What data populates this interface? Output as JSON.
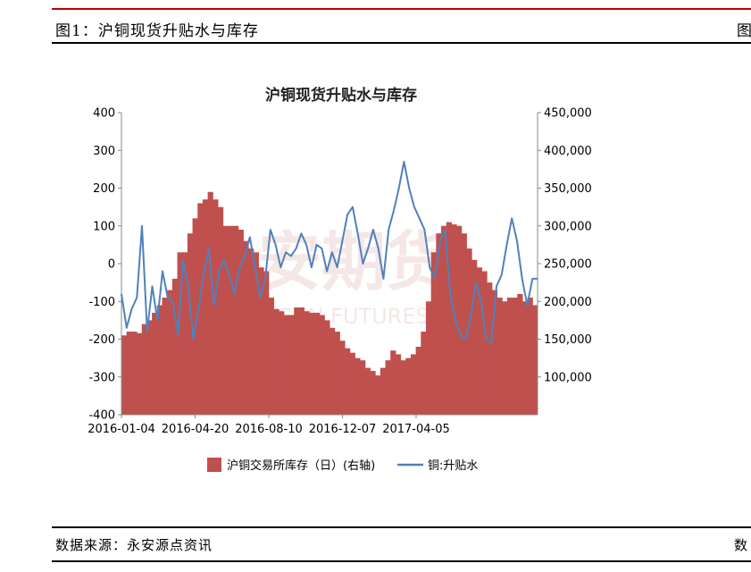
{
  "header": {
    "figure_title": "图1：沪铜现货升贴水与库存",
    "right_fragment": "图"
  },
  "footer": {
    "source": "数据来源：永安源点资讯",
    "right_fragment": "数"
  },
  "watermark": {
    "main": "永安期货",
    "sub": "YONGAN FUTURES"
  },
  "colors": {
    "bar": "#c0504d",
    "line": "#4f81bd",
    "top_rule": "#c00000"
  },
  "chart_data": {
    "type": "bar+line",
    "title": "沪铜现货升贴水与库存",
    "x_ticks": [
      "2016-01-04",
      "2016-04-20",
      "2016-08-10",
      "2016-12-07",
      "2017-04-05"
    ],
    "y_left": {
      "lim": [
        -400,
        400
      ],
      "ticks": [
        "400",
        "300",
        "200",
        "100",
        "0",
        "-100",
        "-200",
        "-300",
        "-400"
      ]
    },
    "y_right": {
      "lim": [
        50000,
        450000
      ],
      "ticks": [
        "450,000",
        "400,000",
        "350,000",
        "300,000",
        "250,000",
        "200,000",
        "150,000",
        "100,000"
      ]
    },
    "legend": [
      "沪铜交易所库存（日）(右轴)",
      "铜:升贴水"
    ],
    "legend_position": "bottom",
    "series": [
      {
        "name": "沪铜交易所库存（日）(右轴)",
        "axis": "right",
        "kind": "bar",
        "values": [
          155000,
          160000,
          160000,
          158000,
          170000,
          175000,
          185000,
          195000,
          205000,
          215000,
          230000,
          265000,
          265000,
          290000,
          310000,
          330000,
          335000,
          345000,
          335000,
          325000,
          300000,
          300000,
          300000,
          295000,
          280000,
          270000,
          265000,
          245000,
          240000,
          205000,
          190000,
          187000,
          182000,
          182000,
          192000,
          192000,
          187000,
          185000,
          185000,
          182000,
          175000,
          165000,
          160000,
          148000,
          138000,
          132000,
          125000,
          122000,
          112000,
          108000,
          102000,
          112000,
          122000,
          135000,
          130000,
          122000,
          125000,
          130000,
          140000,
          160000,
          200000,
          265000,
          290000,
          300000,
          305000,
          302000,
          300000,
          290000,
          270000,
          255000,
          245000,
          240000,
          225000,
          215000,
          205000,
          200000,
          205000,
          205000,
          210000,
          200000,
          205000,
          195000
        ]
      },
      {
        "name": "铜:升贴水",
        "axis": "left",
        "kind": "line",
        "values": [
          -80,
          -170,
          -120,
          -90,
          100,
          -180,
          -60,
          -150,
          -20,
          -90,
          -100,
          -190,
          10,
          -60,
          -200,
          -120,
          -30,
          40,
          -110,
          -20,
          10,
          -30,
          -80,
          -10,
          20,
          70,
          -10,
          -90,
          -40,
          90,
          50,
          -10,
          30,
          20,
          40,
          80,
          50,
          -10,
          50,
          40,
          -20,
          30,
          -10,
          60,
          130,
          150,
          80,
          0,
          40,
          90,
          40,
          -40,
          90,
          140,
          200,
          270,
          200,
          150,
          120,
          90,
          -10,
          -40,
          60,
          90,
          -80,
          -150,
          -190,
          -200,
          -140,
          -50,
          -100,
          -200,
          -210,
          -60,
          -30,
          50,
          120,
          60,
          -40,
          -110,
          -40,
          -40
        ]
      }
    ]
  }
}
